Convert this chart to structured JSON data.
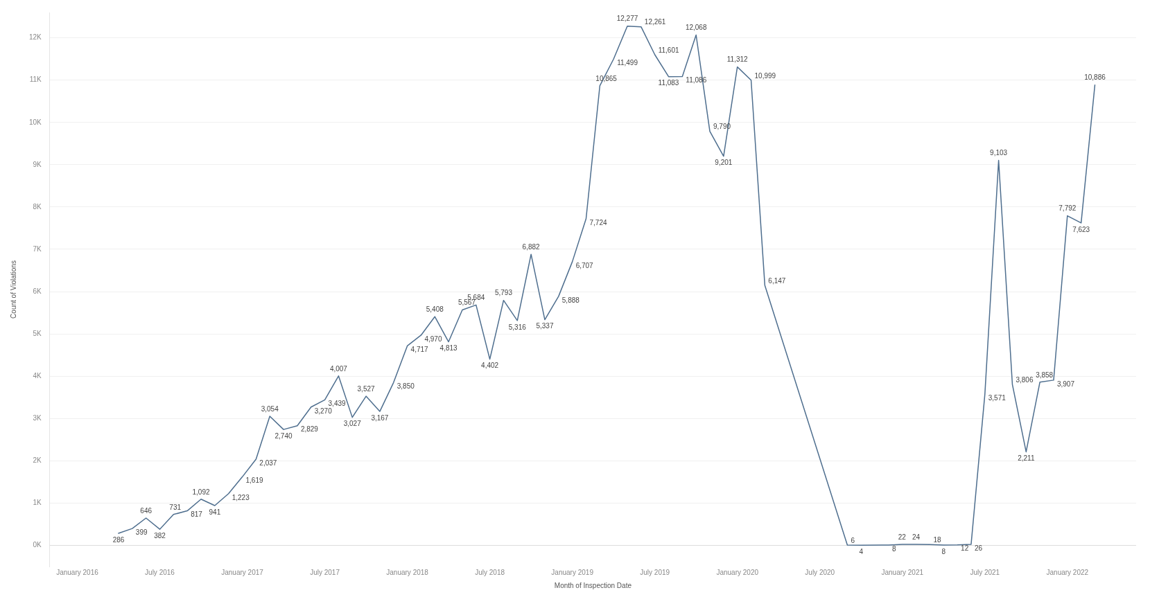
{
  "chart_data": {
    "type": "line",
    "xlabel": "Month of Inspection Date",
    "ylabel": "Count of Violations",
    "x": [
      "2016-04",
      "2016-05",
      "2016-06",
      "2016-07",
      "2016-08",
      "2016-09",
      "2016-10",
      "2016-11",
      "2016-12",
      "2017-01",
      "2017-02",
      "2017-03",
      "2017-04",
      "2017-05",
      "2017-06",
      "2017-07",
      "2017-08",
      "2017-09",
      "2017-10",
      "2017-11",
      "2017-12",
      "2018-01",
      "2018-02",
      "2018-03",
      "2018-04",
      "2018-05",
      "2018-06",
      "2018-07",
      "2018-08",
      "2018-09",
      "2018-10",
      "2018-11",
      "2018-12",
      "2019-01",
      "2019-02",
      "2019-03",
      "2019-04",
      "2019-05",
      "2019-06",
      "2019-07",
      "2019-08",
      "2019-09",
      "2019-10",
      "2019-11",
      "2019-12",
      "2020-01",
      "2020-02",
      "2020-03",
      "2020-09",
      "2020-10",
      "2020-12",
      "2021-01",
      "2021-02",
      "2021-03",
      "2021-04",
      "2021-05",
      "2021-06",
      "2021-07",
      "2021-08",
      "2021-09",
      "2021-10",
      "2021-11",
      "2021-12",
      "2022-01",
      "2022-02",
      "2022-03"
    ],
    "series": [
      {
        "color": "#4e6e8e",
        "values": [
          286,
          399,
          646,
          382,
          731,
          817,
          1092,
          941,
          1223,
          1619,
          2037,
          3054,
          2740,
          2829,
          3270,
          3439,
          4007,
          3027,
          3527,
          3167,
          3850,
          4717,
          4970,
          5408,
          4813,
          5567,
          5684,
          4402,
          5793,
          5316,
          6882,
          5337,
          5888,
          6707,
          7724,
          10865,
          11499,
          12277,
          12261,
          11601,
          11083,
          11086,
          12068,
          9790,
          9201,
          11312,
          10999,
          6147,
          6,
          4,
          8,
          22,
          24,
          18,
          8,
          12,
          26,
          3571,
          9103,
          3806,
          2211,
          3858,
          3907,
          7792,
          7623,
          10886
        ]
      }
    ],
    "value_labels": [
      "286",
      "399",
      "646",
      "382",
      "731",
      "817",
      "1,092",
      "941",
      "1,223",
      "1,619",
      "2,037",
      "3,054",
      "2,740",
      "2,829",
      "3,270",
      "3,439",
      "4,007",
      "3,027",
      "3,527",
      "3,167",
      "3,850",
      "4,717",
      "4,970",
      "5,408",
      "4,813",
      "5,567",
      "5,684",
      "4,402",
      "5,793",
      "5,316",
      "6,882",
      "5,337",
      "5,888",
      "6,707",
      "7,724",
      "10,865",
      "11,499",
      "12,277",
      "12,261",
      "11,601",
      "11,083",
      "11,086",
      "12,068",
      "9,790",
      "9,201",
      "11,312",
      "10,999",
      "6,147",
      "6",
      "4",
      "8",
      "22",
      "24",
      "18",
      "8",
      "12",
      "26",
      "3,571",
      "9,103",
      "3,806",
      "2,211",
      "3,858",
      "3,907",
      "7,792",
      "7,623",
      "10,886"
    ],
    "xlim": [
      "2015-11",
      "2022-06"
    ],
    "xticks": [
      {
        "value": "2016-01",
        "label": "January 2016"
      },
      {
        "value": "2016-07",
        "label": "July 2016"
      },
      {
        "value": "2017-01",
        "label": "January 2017"
      },
      {
        "value": "2017-07",
        "label": "July 2017"
      },
      {
        "value": "2018-01",
        "label": "January 2018"
      },
      {
        "value": "2018-07",
        "label": "July 2018"
      },
      {
        "value": "2019-01",
        "label": "January 2019"
      },
      {
        "value": "2019-07",
        "label": "July 2019"
      },
      {
        "value": "2020-01",
        "label": "January 2020"
      },
      {
        "value": "2020-07",
        "label": "July 2020"
      },
      {
        "value": "2021-01",
        "label": "January 2021"
      },
      {
        "value": "2021-07",
        "label": "July 2021"
      },
      {
        "value": "2022-01",
        "label": "January 2022"
      }
    ],
    "ylim": [
      -500,
      12600
    ],
    "yticks": [
      {
        "value": 0,
        "label": "0K"
      },
      {
        "value": 1000,
        "label": "1K"
      },
      {
        "value": 2000,
        "label": "2K"
      },
      {
        "value": 3000,
        "label": "3K"
      },
      {
        "value": 4000,
        "label": "4K"
      },
      {
        "value": 5000,
        "label": "5K"
      },
      {
        "value": 6000,
        "label": "6K"
      },
      {
        "value": 7000,
        "label": "7K"
      },
      {
        "value": 8000,
        "label": "8K"
      },
      {
        "value": 9000,
        "label": "9K"
      },
      {
        "value": 10000,
        "label": "10K"
      },
      {
        "value": 11000,
        "label": "11K"
      },
      {
        "value": 12000,
        "label": "12K"
      }
    ],
    "grid": "y",
    "legend": false,
    "marker": "none",
    "line_style": "solid"
  }
}
